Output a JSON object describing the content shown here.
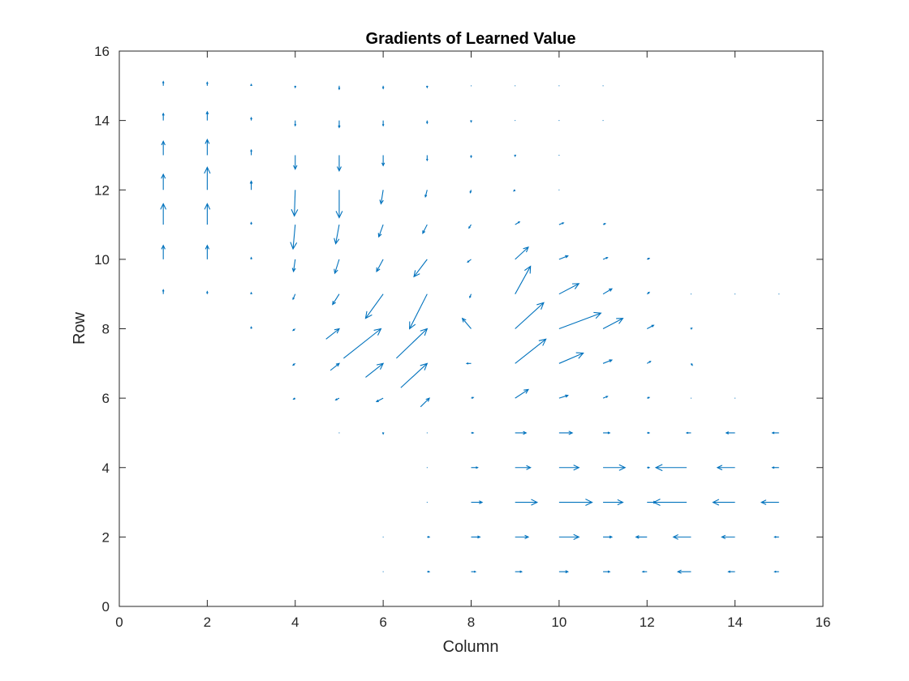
{
  "chart_data": {
    "type": "quiver",
    "title": "Gradients of Learned Value",
    "xlabel": "Column",
    "ylabel": "Row",
    "xlim": [
      0,
      16
    ],
    "ylim": [
      0,
      16
    ],
    "xticks": [
      "0",
      "2",
      "4",
      "6",
      "8",
      "10",
      "12",
      "14",
      "16"
    ],
    "yticks": [
      "0",
      "2",
      "4",
      "6",
      "8",
      "10",
      "12",
      "14",
      "16"
    ],
    "grid": false,
    "arrow_color": "#0072BD",
    "arrows": [
      [
        1,
        15,
        0,
        0.12
      ],
      [
        2,
        15,
        0,
        0.1
      ],
      [
        3,
        15,
        0,
        0.04
      ],
      [
        4,
        15,
        0,
        -0.05
      ],
      [
        5,
        15,
        0,
        -0.1
      ],
      [
        6,
        15,
        0,
        -0.08
      ],
      [
        7,
        15,
        0,
        -0.05
      ],
      [
        8,
        15,
        0,
        -0.02
      ],
      [
        9,
        15,
        0,
        -0.01
      ],
      [
        10,
        15,
        0,
        0
      ],
      [
        11,
        15,
        0,
        0
      ],
      [
        1,
        14,
        0,
        0.2
      ],
      [
        2,
        14,
        0,
        0.25
      ],
      [
        3,
        14,
        0,
        0.08
      ],
      [
        4,
        14,
        0,
        -0.15
      ],
      [
        5,
        14,
        0,
        -0.2
      ],
      [
        6,
        14,
        0,
        -0.15
      ],
      [
        7,
        14,
        0,
        -0.08
      ],
      [
        8,
        14,
        0,
        -0.04
      ],
      [
        9,
        14,
        0,
        -0.02
      ],
      [
        10,
        14,
        0,
        -0.01
      ],
      [
        11,
        14,
        0,
        0
      ],
      [
        1,
        13,
        0,
        0.4
      ],
      [
        2,
        13,
        0,
        0.45
      ],
      [
        3,
        13,
        0,
        0.15
      ],
      [
        4,
        13,
        0,
        -0.4
      ],
      [
        5,
        13,
        0,
        -0.45
      ],
      [
        6,
        13,
        0,
        -0.3
      ],
      [
        7,
        13,
        0,
        -0.15
      ],
      [
        8,
        13,
        0,
        -0.06
      ],
      [
        9,
        13,
        0,
        -0.03
      ],
      [
        10,
        13,
        0,
        -0.01
      ],
      [
        1,
        12,
        0,
        0.45
      ],
      [
        2,
        12,
        0,
        0.65
      ],
      [
        3,
        12,
        0,
        0.25
      ],
      [
        4,
        12,
        -0.02,
        -0.75
      ],
      [
        5,
        12,
        0,
        -0.8
      ],
      [
        6,
        12,
        -0.05,
        -0.4
      ],
      [
        7,
        12,
        -0.04,
        -0.2
      ],
      [
        8,
        12,
        -0.02,
        -0.08
      ],
      [
        9,
        12,
        -0.03,
        -0.03
      ],
      [
        10,
        12,
        -0.02,
        0
      ],
      [
        1,
        11,
        0,
        0.6
      ],
      [
        2,
        11,
        0,
        0.6
      ],
      [
        3,
        11,
        0,
        0.06
      ],
      [
        4,
        11,
        -0.05,
        -0.7
      ],
      [
        5,
        11,
        -0.08,
        -0.55
      ],
      [
        6,
        11,
        -0.1,
        -0.35
      ],
      [
        7,
        11,
        -0.1,
        -0.25
      ],
      [
        8,
        11,
        -0.05,
        -0.1
      ],
      [
        9,
        11,
        0.1,
        0.08
      ],
      [
        10,
        11,
        0.1,
        0.05
      ],
      [
        11,
        11,
        0.05,
        0.03
      ],
      [
        1,
        10,
        0,
        0.4
      ],
      [
        2,
        10,
        0,
        0.4
      ],
      [
        3,
        10,
        0,
        0.05
      ],
      [
        4,
        10,
        -0.04,
        -0.35
      ],
      [
        5,
        10,
        -0.1,
        -0.4
      ],
      [
        6,
        10,
        -0.15,
        -0.35
      ],
      [
        7,
        10,
        -0.3,
        -0.5
      ],
      [
        8,
        10,
        -0.08,
        -0.08
      ],
      [
        9,
        10,
        0.3,
        0.35
      ],
      [
        10,
        10,
        0.2,
        0.1
      ],
      [
        11,
        10,
        0.1,
        0.05
      ],
      [
        12,
        10,
        0.05,
        0.03
      ],
      [
        1,
        9,
        0,
        0.12
      ],
      [
        2,
        9,
        0,
        0.07
      ],
      [
        3,
        9,
        0,
        0.04
      ],
      [
        4,
        9,
        -0.05,
        -0.15
      ],
      [
        5,
        9,
        -0.15,
        -0.3
      ],
      [
        6,
        9,
        -0.4,
        -0.7
      ],
      [
        7,
        9,
        -0.4,
        -1
      ],
      [
        8,
        9,
        -0.03,
        -0.1
      ],
      [
        9,
        9,
        0.35,
        0.8
      ],
      [
        10,
        9,
        0.45,
        0.3
      ],
      [
        11,
        9,
        0.2,
        0.15
      ],
      [
        12,
        9,
        0.05,
        0.05
      ],
      [
        13,
        9,
        0.01,
        0
      ],
      [
        14,
        9,
        0,
        0
      ],
      [
        15,
        9,
        0,
        0
      ],
      [
        3,
        8,
        0,
        0.05
      ],
      [
        4,
        8,
        -0.05,
        -0.05
      ],
      [
        4.7,
        7.7,
        0.3,
        0.3
      ],
      [
        5.1,
        7.15,
        0.85,
        0.85
      ],
      [
        6.3,
        7.15,
        0.7,
        0.85
      ],
      [
        8,
        8,
        -0.2,
        0.3
      ],
      [
        9,
        8,
        0.65,
        0.75
      ],
      [
        10,
        8,
        0.95,
        0.45
      ],
      [
        11,
        8,
        0.45,
        0.3
      ],
      [
        12,
        8,
        0.15,
        0.1
      ],
      [
        13,
        8,
        0.02,
        0.02
      ],
      [
        4,
        7,
        -0.05,
        -0.05
      ],
      [
        4.8,
        6.8,
        0.2,
        0.2
      ],
      [
        5.6,
        6.6,
        0.4,
        0.4
      ],
      [
        6.4,
        6.3,
        0.6,
        0.7
      ],
      [
        8,
        7,
        -0.1,
        0
      ],
      [
        9,
        7,
        0.7,
        0.7
      ],
      [
        10,
        7,
        0.55,
        0.3
      ],
      [
        11,
        7,
        0.2,
        0.1
      ],
      [
        12,
        7,
        0.08,
        0.06
      ],
      [
        13,
        7,
        0.03,
        -0.05
      ],
      [
        4,
        6,
        -0.04,
        -0.03
      ],
      [
        5,
        6,
        -0.08,
        -0.05
      ],
      [
        6,
        6,
        -0.15,
        -0.1
      ],
      [
        6.85,
        5.75,
        0.2,
        0.25
      ],
      [
        8,
        6,
        0.05,
        0.02
      ],
      [
        9,
        6,
        0.3,
        0.25
      ],
      [
        10,
        6,
        0.2,
        0.08
      ],
      [
        11,
        6,
        0.1,
        0.05
      ],
      [
        12,
        6,
        0.05,
        0.02
      ],
      [
        13,
        6,
        0.02,
        0
      ],
      [
        14,
        6,
        0.01,
        0
      ],
      [
        5,
        5,
        -0.02,
        0
      ],
      [
        6,
        5,
        0,
        -0.03
      ],
      [
        7,
        5,
        -0.02,
        0
      ],
      [
        8,
        5,
        0.05,
        0
      ],
      [
        9,
        5,
        0.25,
        0
      ],
      [
        10,
        5,
        0.3,
        0
      ],
      [
        11,
        5,
        0.15,
        0
      ],
      [
        12,
        5,
        0.05,
        0
      ],
      [
        13,
        5,
        -0.1,
        0
      ],
      [
        14,
        5,
        -0.2,
        0
      ],
      [
        15,
        5,
        -0.15,
        0
      ],
      [
        7,
        4,
        0.02,
        0
      ],
      [
        8,
        4,
        0.15,
        0
      ],
      [
        9,
        4,
        0.35,
        0
      ],
      [
        10,
        4,
        0.45,
        0
      ],
      [
        11,
        4,
        0.5,
        0
      ],
      [
        12,
        4,
        0.05,
        0
      ],
      [
        12.9,
        4,
        -0.7,
        0
      ],
      [
        14,
        4,
        -0.4,
        0
      ],
      [
        15,
        4,
        -0.15,
        0
      ],
      [
        7,
        3,
        0.02,
        0
      ],
      [
        8,
        3,
        0.25,
        0
      ],
      [
        9,
        3,
        0.5,
        0
      ],
      [
        10,
        3,
        0.75,
        0
      ],
      [
        11,
        3,
        0.45,
        0
      ],
      [
        12,
        3,
        0.2,
        0
      ],
      [
        12.9,
        3,
        -0.75,
        0
      ],
      [
        14,
        3,
        -0.5,
        0
      ],
      [
        15,
        3,
        -0.4,
        0
      ],
      [
        6,
        2,
        0.02,
        0
      ],
      [
        7,
        2,
        0.05,
        0
      ],
      [
        8,
        2,
        0.2,
        0
      ],
      [
        9,
        2,
        0.3,
        0
      ],
      [
        10,
        2,
        0.45,
        0
      ],
      [
        11,
        2,
        0.2,
        0
      ],
      [
        12,
        2,
        -0.25,
        0
      ],
      [
        13,
        2,
        -0.4,
        0
      ],
      [
        14,
        2,
        -0.3,
        0
      ],
      [
        15,
        2,
        -0.1,
        0
      ],
      [
        6,
        1,
        0.02,
        0
      ],
      [
        7,
        1,
        0.05,
        0
      ],
      [
        8,
        1,
        0.1,
        0
      ],
      [
        9,
        1,
        0.15,
        0
      ],
      [
        10,
        1,
        0.2,
        0
      ],
      [
        11,
        1,
        0.15,
        0
      ],
      [
        12,
        1,
        -0.1,
        0
      ],
      [
        13,
        1,
        -0.3,
        0
      ],
      [
        14,
        1,
        -0.15,
        0
      ],
      [
        15,
        1,
        -0.1,
        0
      ]
    ]
  }
}
